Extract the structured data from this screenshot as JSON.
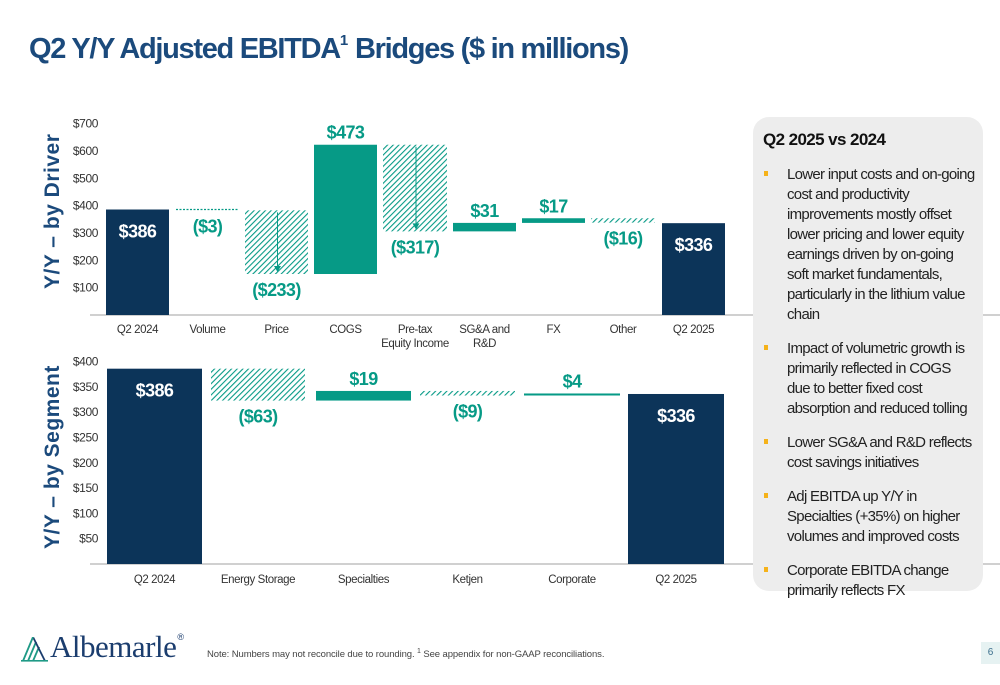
{
  "title": {
    "main": "Q2 Y/Y Adjusted EBITDA",
    "superscript": "1",
    "suffix": " Bridges ($ in millions)"
  },
  "colors": {
    "navy": "#0c3459",
    "teal": "#069a86",
    "title_blue": "#1b4a7c",
    "bullet_gold": "#f5b21a",
    "panel_bg": "#ededed"
  },
  "chart_data": [
    {
      "type": "waterfall",
      "title": "Y/Y – by Driver",
      "ylabel": "Y/Y – by Driver",
      "xlabel": "",
      "ylim": [
        0,
        700
      ],
      "yticks": [
        100,
        200,
        300,
        400,
        500,
        600,
        700
      ],
      "ytick_labels": [
        "$100",
        "$200",
        "$300",
        "$400",
        "$500",
        "$600",
        "$700"
      ],
      "grid": false,
      "categories": [
        "Q2 2024",
        "Volume",
        "Price",
        "COGS",
        "Pre-tax\nEquity Income",
        "SG&A and\nR&D",
        "FX",
        "Other",
        "Q2 2025"
      ],
      "values": [
        386,
        -3,
        -233,
        473,
        -317,
        31,
        17,
        -16,
        336
      ],
      "labels": [
        "$386",
        "($3)",
        "($233)",
        "$473",
        "($317)",
        "$31",
        "$17",
        "($16)",
        "$336"
      ],
      "kinds": [
        "total",
        "decrease",
        "decrease",
        "increase",
        "decrease",
        "increase",
        "increase",
        "decrease",
        "total"
      ]
    },
    {
      "type": "waterfall",
      "title": "Y/Y – by Segment",
      "ylabel": "Y/Y – by Segment",
      "xlabel": "",
      "ylim": [
        0,
        400
      ],
      "yticks": [
        50,
        100,
        150,
        200,
        250,
        300,
        350,
        400
      ],
      "ytick_labels": [
        "$50",
        "$100",
        "$150",
        "$200",
        "$250",
        "$300",
        "$350",
        "$400"
      ],
      "grid": false,
      "categories": [
        "Q2 2024",
        "Energy Storage",
        "Specialties",
        "Ketjen",
        "Corporate",
        "Q2 2025"
      ],
      "values": [
        386,
        -63,
        19,
        -9,
        4,
        336
      ],
      "labels": [
        "$386",
        "($63)",
        "$19",
        "($9)",
        "$4",
        "$336"
      ],
      "kinds": [
        "total",
        "decrease",
        "increase",
        "decrease",
        "increase",
        "total"
      ]
    }
  ],
  "panel": {
    "title": "Q2 2025 vs 2024",
    "bullets": [
      "Lower input costs and on-going cost and productivity improvements mostly offset lower pricing and lower equity earnings driven by on-going soft market fundamentals, particularly in the lithium value chain",
      "Impact of volumetric growth is primarily reflected in COGS due to better fixed cost absorption and reduced tolling",
      "Lower SG&A and R&D reflects cost savings initiatives",
      "Adj EBITDA up Y/Y in Specialties (+35%) on higher volumes and improved costs",
      "Corporate EBITDA change primarily reflects FX"
    ]
  },
  "footer": {
    "note_prefix": "Note: Numbers may not reconcile due to rounding. ",
    "note_sup": "1",
    "note_suffix": " See appendix for non-GAAP reconciliations.",
    "logo_text": "Albemarle",
    "logo_reg": "®",
    "page_number": "6"
  }
}
